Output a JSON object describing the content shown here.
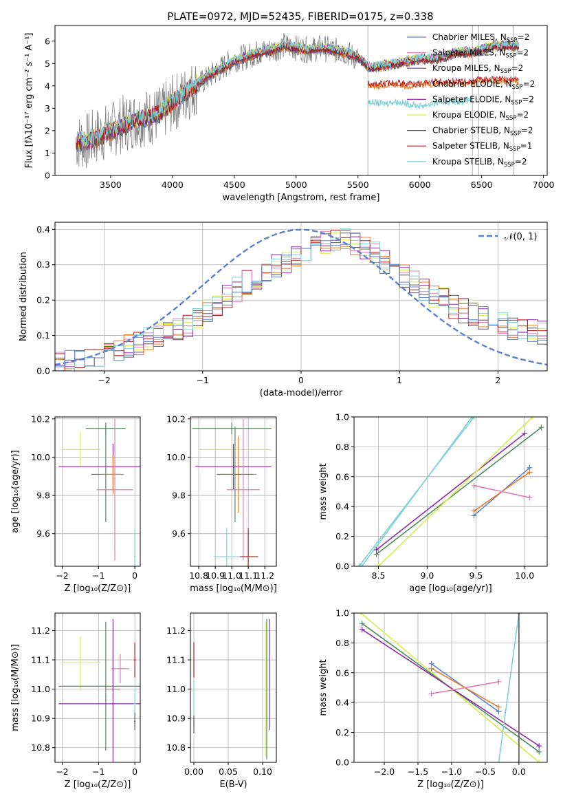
{
  "figure": {
    "title": "PLATE=0972, MJD=52435, FIBERID=0175, z=0.338"
  },
  "colors": {
    "chabrier_miles": "#5b7fd1",
    "salpeter_miles": "#e37cb3",
    "kroupa_miles": "#8e2ba8",
    "chabrier_elodie": "#e87d2c",
    "salpeter_elodie": "#8e2ba8",
    "kroupa_elodie": "#d4ee4a",
    "chabrier_stelib": "#555555",
    "salpeter_stelib": "#b51a1a",
    "kroupa_stelib": "#7fd1d8",
    "data": "#808080",
    "normal": "#5b7fd1",
    "green": "#4f8a5f"
  },
  "chart_data": [
    {
      "id": "spectrum",
      "type": "line",
      "xlabel": "wavelength [Angstrom, rest frame]",
      "ylabel": "Flux [fλ10⁻¹⁷ erg cm⁻² s⁻¹ A⁻¹]",
      "xlim": [
        3050,
        7030
      ],
      "ylim": [
        0,
        6.7
      ],
      "xticks": [
        "3500",
        "4000",
        "4500",
        "5000",
        "5500",
        "6000",
        "6500",
        "7000"
      ],
      "yticks": [
        "0",
        "1",
        "2",
        "3",
        "4",
        "5",
        "6"
      ],
      "legend": [
        {
          "name": "Chabrier MILES, N",
          "sub": "SSP",
          "tail": "=2",
          "color_key": "chabrier_miles"
        },
        {
          "name": "Salpeter MILES, N",
          "sub": "SSP",
          "tail": "=2",
          "color_key": "salpeter_miles"
        },
        {
          "name": "Kroupa MILES, N",
          "sub": "SSP",
          "tail": "=2",
          "color_key": "kroupa_miles"
        },
        {
          "name": "Chabrier ELODIE, N",
          "sub": "SSP",
          "tail": "=2",
          "color_key": "chabrier_elodie"
        },
        {
          "name": "Salpeter ELODIE, N",
          "sub": "SSP",
          "tail": "=2",
          "color_key": "salpeter_elodie"
        },
        {
          "name": "Kroupa ELODIE, N",
          "sub": "SSP",
          "tail": "=2",
          "color_key": "kroupa_elodie"
        },
        {
          "name": "Chabrier STELIB, N",
          "sub": "SSP",
          "tail": "=2",
          "color_key": "chabrier_stelib"
        },
        {
          "name": "Salpeter STELIB, N",
          "sub": "SSP",
          "tail": "=1",
          "color_key": "salpeter_stelib"
        },
        {
          "name": "Kroupa STELIB, N",
          "sub": "SSP",
          "tail": "=2",
          "color_key": "kroupa_stelib"
        }
      ],
      "continuum_data": {
        "x": [
          3220,
          3300,
          3400,
          3500,
          3600,
          3700,
          3800,
          3900,
          4000,
          4100,
          4200,
          4300,
          4400,
          4500,
          4600,
          4700,
          4800,
          4900,
          5000,
          5100,
          5200,
          5300,
          5400,
          5500
        ],
        "y": [
          1.5,
          1.5,
          1.8,
          2.0,
          2.3,
          2.5,
          2.6,
          2.7,
          3.2,
          3.6,
          4.0,
          4.4,
          4.8,
          5.2,
          5.3,
          5.5,
          5.6,
          5.8,
          5.7,
          5.6,
          5.7,
          5.6,
          5.5,
          5.2
        ]
      },
      "model_high": {
        "x": [
          3220,
          3300,
          3400,
          3500,
          3600,
          3700,
          3800,
          3900,
          4000,
          4100,
          4200,
          4300,
          4400,
          4500,
          4600,
          4700,
          4800,
          4900,
          5000,
          5100,
          5200,
          5300,
          5400,
          5500,
          5600,
          5700,
          5800,
          5900,
          6000,
          6100,
          6200,
          6300,
          6400,
          6500,
          6600,
          6700,
          6800
        ],
        "y": [
          1.5,
          1.5,
          1.7,
          2.0,
          2.2,
          2.5,
          2.6,
          2.8,
          3.3,
          3.7,
          4.1,
          4.5,
          4.8,
          5.1,
          5.3,
          5.5,
          5.6,
          5.8,
          5.7,
          5.6,
          5.7,
          5.6,
          5.5,
          5.3,
          4.8,
          4.9,
          5.0,
          5.1,
          5.2,
          5.2,
          5.3,
          5.5,
          5.5,
          5.6,
          5.8,
          5.8,
          5.8
        ]
      },
      "model_low": {
        "x": [
          5580,
          5700,
          5800,
          5900,
          6000,
          6100,
          6200,
          6300,
          6430
        ],
        "y": [
          3.3,
          3.2,
          3.3,
          3.2,
          3.1,
          3.2,
          3.3,
          3.3,
          3.4
        ]
      },
      "model_mid": {
        "x": [
          5580,
          5700,
          5800,
          5900,
          6000,
          6100,
          6200,
          6300,
          6400,
          6500,
          6600,
          6700,
          6800
        ],
        "y": [
          4.0,
          4.0,
          4.05,
          4.0,
          4.0,
          4.1,
          4.1,
          4.1,
          4.1,
          4.2,
          4.2,
          4.2,
          4.2
        ]
      }
    },
    {
      "id": "residuals",
      "type": "line",
      "xlabel": "(data-model)/error",
      "ylabel": "Normed distribution",
      "xlim": [
        -2.5,
        2.5
      ],
      "ylim": [
        0,
        0.42
      ],
      "xticks": [
        "−2",
        "−1",
        "0",
        "1",
        "2"
      ],
      "yticks": [
        "0.0",
        "0.1",
        "0.2",
        "0.3",
        "0.4"
      ],
      "legend": [
        {
          "name": "𝒩(0, 1)",
          "color_key": "normal"
        }
      ],
      "histogram": {
        "bin_start": -2.5,
        "bin_width": 0.1,
        "values": [
          0.02,
          0.025,
          0.03,
          0.035,
          0.04,
          0.05,
          0.06,
          0.07,
          0.08,
          0.09,
          0.1,
          0.11,
          0.12,
          0.13,
          0.15,
          0.17,
          0.19,
          0.21,
          0.23,
          0.25,
          0.26,
          0.28,
          0.3,
          0.31,
          0.33,
          0.34,
          0.35,
          0.36,
          0.37,
          0.37,
          0.36,
          0.35,
          0.33,
          0.31,
          0.29,
          0.27,
          0.25,
          0.23,
          0.21,
          0.2,
          0.18,
          0.17,
          0.16,
          0.15,
          0.14,
          0.13,
          0.12,
          0.12,
          0.11,
          0.11
        ]
      }
    },
    {
      "id": "age-vs-Z",
      "type": "scatter",
      "xlabel": "Z [log₁₀(Z/Z⊙)]",
      "ylabel": "age  [log₁₀(age/yr)]",
      "xlim": [
        -2.2,
        0.15
      ],
      "ylim": [
        9.43,
        10.21
      ],
      "xticks": [
        "−2",
        "−1",
        "0"
      ],
      "xtick_values": [
        -2,
        -1,
        0
      ],
      "yticks": [
        "9.6",
        "9.8",
        "10.0",
        "10.2"
      ],
      "ytick_values": [
        9.6,
        9.8,
        10.0,
        10.2
      ],
      "points": [
        {
          "x": -0.8,
          "y": 10.15,
          "xerr": 0.55,
          "yerr": 0.03,
          "color_key": "green"
        },
        {
          "x": -1.5,
          "y": 10.04,
          "xerr": 0.55,
          "yerr": 0.09,
          "color_key": "kroupa_elodie"
        },
        {
          "x": -0.6,
          "y": 9.95,
          "xerr": 1.5,
          "yerr": 0.12,
          "color_key": "kroupa_miles"
        },
        {
          "x": -0.8,
          "y": 9.91,
          "xerr": 0.4,
          "yerr": 0.25,
          "color_key": "green"
        },
        {
          "x": -0.6,
          "y": 9.91,
          "xerr": 0.3,
          "yerr": 0.1,
          "color_key": "chabrier_elodie"
        },
        {
          "x": -0.55,
          "y": 9.83,
          "xerr": 0.5,
          "yerr": 0.37,
          "color_key": "salpeter_miles"
        },
        {
          "x": 0.0,
          "y": 9.48,
          "xerr": 0.03,
          "yerr": 0.15,
          "color_key": "kroupa_stelib"
        }
      ]
    },
    {
      "id": "age-vs-mass",
      "type": "scatter",
      "xlabel": "mass [log₁₀(M/M⊙)]",
      "ylabel": "",
      "xlim": [
        10.75,
        11.27
      ],
      "ylim": [
        9.43,
        10.21
      ],
      "xticks": [
        "10.8",
        "10.9",
        "11.0",
        "11.1",
        "11.2"
      ],
      "xtick_values": [
        10.8,
        10.9,
        11.0,
        11.1,
        11.2
      ],
      "yticks": [
        "9.6",
        "9.8",
        "10.0",
        "10.2"
      ],
      "ytick_values": [
        9.6,
        9.8,
        10.0,
        10.2
      ],
      "points": [
        {
          "x": 11.0,
          "y": 10.15,
          "xerr": 0.24,
          "yerr": 0.03,
          "color_key": "green"
        },
        {
          "x": 11.02,
          "y": 10.04,
          "xerr": 0.22,
          "yerr": 0.09,
          "color_key": "kroupa_elodie"
        },
        {
          "x": 11.01,
          "y": 9.95,
          "xerr": 0.23,
          "yerr": 0.12,
          "color_key": "kroupa_miles"
        },
        {
          "x": 11.04,
          "y": 9.91,
          "xerr": 0.11,
          "yerr": 0.2,
          "color_key": "chabrier_elodie"
        },
        {
          "x": 11.02,
          "y": 9.91,
          "xerr": 0.11,
          "yerr": 0.25,
          "color_key": "green"
        },
        {
          "x": 11.07,
          "y": 9.83,
          "xerr": 0.1,
          "yerr": 0.37,
          "color_key": "salpeter_miles"
        },
        {
          "x": 11.1,
          "y": 9.48,
          "xerr": 0.06,
          "yerr": 0.15,
          "color_key": "salpeter_stelib"
        },
        {
          "x": 10.97,
          "y": 9.48,
          "xerr": 0.08,
          "yerr": 0.15,
          "color_key": "kroupa_stelib"
        }
      ]
    },
    {
      "id": "weight-vs-age",
      "type": "line",
      "xlabel": "age  [log₁₀(age/yr)]",
      "ylabel": "mass weight",
      "xlim": [
        8.25,
        10.23
      ],
      "ylim": [
        0,
        1
      ],
      "xticks": [
        "8.5",
        "9.0",
        "9.5",
        "10.0"
      ],
      "xtick_values": [
        8.5,
        9.0,
        9.5,
        10.0
      ],
      "yticks": [
        "0.0",
        "0.2",
        "0.4",
        "0.6",
        "0.8",
        "1.0"
      ],
      "ytick_values": [
        0.0,
        0.2,
        0.4,
        0.6,
        0.8,
        1.0
      ],
      "lines": [
        {
          "x": [
            8.3,
            9.48
          ],
          "y": [
            0.0,
            1.0
          ],
          "color_key": "kroupa_stelib"
        },
        {
          "x": [
            8.33,
            9.46
          ],
          "y": [
            0.0,
            1.0
          ],
          "color_key": "kroupa_stelib"
        },
        {
          "x": [
            8.48,
            10.17
          ],
          "y": [
            0.08,
            0.93
          ],
          "color_key": "green"
        },
        {
          "x": [
            8.48,
            10.0
          ],
          "y": [
            0.11,
            0.89
          ],
          "color_key": "kroupa_miles"
        },
        {
          "x": [
            8.5,
            10.08
          ],
          "y": [
            0.0,
            1.0
          ],
          "color_key": "kroupa_elodie"
        },
        {
          "x": [
            9.48,
            10.05
          ],
          "y": [
            0.34,
            0.66
          ],
          "color_key": "chabrier_miles"
        },
        {
          "x": [
            9.48,
            10.05
          ],
          "y": [
            0.37,
            0.63
          ],
          "color_key": "chabrier_elodie"
        },
        {
          "x": [
            9.48,
            10.05
          ],
          "y": [
            0.54,
            0.46
          ],
          "color_key": "salpeter_miles"
        }
      ]
    },
    {
      "id": "mass-vs-Z",
      "type": "scatter",
      "xlabel": "Z [log₁₀(Z/Z⊙)]",
      "ylabel": "mass [log₁₀(M/M⊙)]",
      "xlim": [
        -2.2,
        0.15
      ],
      "ylim": [
        10.75,
        11.26
      ],
      "xticks": [
        "−2",
        "−1",
        "0"
      ],
      "xtick_values": [
        -2,
        -1,
        0
      ],
      "yticks": [
        "10.8",
        "10.9",
        "11.0",
        "11.1",
        "11.2"
      ],
      "ytick_values": [
        10.8,
        10.9,
        11.0,
        11.1,
        11.2
      ],
      "points": [
        {
          "x": -1.5,
          "y": 11.09,
          "xerr": 0.55,
          "yerr": 0.09,
          "color_key": "kroupa_elodie"
        },
        {
          "x": -0.4,
          "y": 11.07,
          "xerr": 0.25,
          "yerr": 0.05,
          "color_key": "salpeter_miles"
        },
        {
          "x": -0.8,
          "y": 11.01,
          "xerr": 1.3,
          "yerr": 0.22,
          "color_key": "green"
        },
        {
          "x": -0.6,
          "y": 11.0,
          "xerr": 0.2,
          "yerr": 0.2,
          "color_key": "chabrier_elodie"
        },
        {
          "x": -0.6,
          "y": 10.95,
          "xerr": 1.5,
          "yerr": 0.29,
          "color_key": "kroupa_miles"
        },
        {
          "x": 0.0,
          "y": 11.1,
          "xerr": 0.03,
          "yerr": 0.06,
          "color_key": "salpeter_stelib"
        },
        {
          "x": 0.0,
          "y": 10.95,
          "xerr": 0.03,
          "yerr": 0.05,
          "color_key": "kroupa_stelib"
        },
        {
          "x": 0.0,
          "y": 10.89,
          "xerr": 0.02,
          "yerr": 0.03,
          "color_key": "chabrier_stelib"
        }
      ]
    },
    {
      "id": "mass-vs-ebv",
      "type": "scatter",
      "xlabel": "E(B-V)",
      "ylabel": "",
      "xlim": [
        -0.005,
        0.12
      ],
      "ylim": [
        10.75,
        11.26
      ],
      "xticks": [
        "0.00",
        "0.05",
        "0.10"
      ],
      "xtick_values": [
        0.0,
        0.05,
        0.1
      ],
      "yticks": [
        "10.8",
        "10.9",
        "11.0",
        "11.1",
        "11.2"
      ],
      "ytick_values": [
        10.8,
        10.9,
        11.0,
        11.1,
        11.2
      ],
      "points": [
        {
          "x": 0.0,
          "y": 11.1,
          "xerr": 0.0,
          "yerr": 0.06,
          "color_key": "salpeter_stelib"
        },
        {
          "x": 0.0,
          "y": 10.95,
          "xerr": 0.0,
          "yerr": 0.08,
          "color_key": "kroupa_stelib"
        },
        {
          "x": 0.0,
          "y": 10.88,
          "xerr": 0.0,
          "yerr": 0.03,
          "color_key": "chabrier_stelib"
        },
        {
          "x": 0.104,
          "y": 11.0,
          "xerr": 0.0,
          "yerr": 0.23,
          "color_key": "kroupa_elodie"
        },
        {
          "x": 0.106,
          "y": 11.0,
          "xerr": 0.0,
          "yerr": 0.24,
          "color_key": "green"
        },
        {
          "x": 0.11,
          "y": 11.05,
          "xerr": 0.0,
          "yerr": 0.19,
          "color_key": "kroupa_miles"
        }
      ]
    },
    {
      "id": "weight-vs-Z",
      "type": "line",
      "xlabel": "Z [log₁₀(Z/Z⊙)]",
      "ylabel": "mass weight",
      "xlim": [
        -2.45,
        0.42
      ],
      "ylim": [
        0,
        1
      ],
      "xticks": [
        "−2.0",
        "−1.5",
        "−1.0",
        "−0.5",
        "0.0"
      ],
      "xtick_values": [
        -2.0,
        -1.5,
        -1.0,
        -0.5,
        0.0
      ],
      "yticks": [
        "0.0",
        "0.2",
        "0.4",
        "0.6",
        "0.8",
        "1.0"
      ],
      "ytick_values": [
        0.0,
        0.2,
        0.4,
        0.6,
        0.8,
        1.0
      ],
      "lines": [
        {
          "x": [
            -2.35,
            0.3
          ],
          "y": [
            1.0,
            0.0
          ],
          "color_key": "kroupa_elodie"
        },
        {
          "x": [
            -2.33,
            0.3
          ],
          "y": [
            0.93,
            0.07
          ],
          "color_key": "green"
        },
        {
          "x": [
            -2.33,
            0.3
          ],
          "y": [
            0.89,
            0.11
          ],
          "color_key": "kroupa_miles"
        },
        {
          "x": [
            -1.3,
            -0.3
          ],
          "y": [
            0.66,
            0.34
          ],
          "color_key": "chabrier_miles"
        },
        {
          "x": [
            -1.3,
            -0.3
          ],
          "y": [
            0.63,
            0.37
          ],
          "color_key": "chabrier_elodie"
        },
        {
          "x": [
            -1.3,
            -0.3
          ],
          "y": [
            0.46,
            0.54
          ],
          "color_key": "salpeter_miles"
        },
        {
          "x": [
            -0.3,
            0.0
          ],
          "y": [
            0.0,
            1.0
          ],
          "color_key": "kroupa_stelib"
        },
        {
          "x": [
            0.0,
            0.0
          ],
          "y": [
            0.0,
            1.0
          ],
          "color_key": "chabrier_stelib"
        }
      ]
    }
  ]
}
